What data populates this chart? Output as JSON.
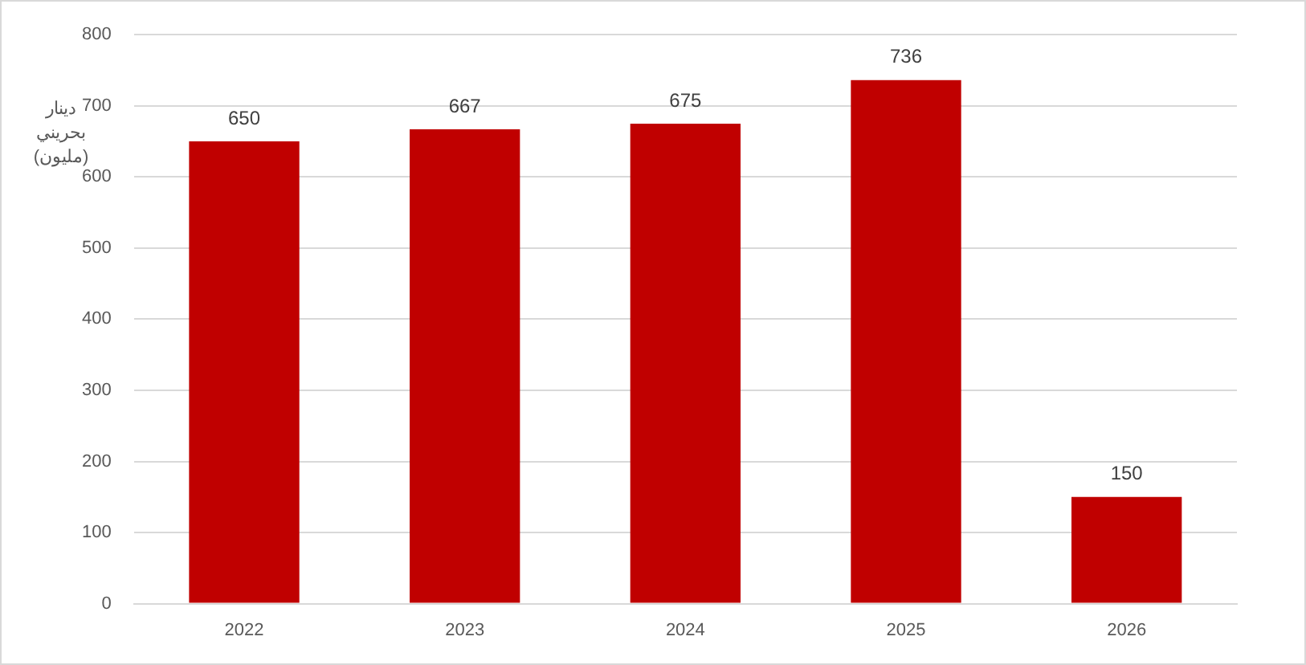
{
  "chart_data": {
    "type": "bar",
    "ylabel": "دينار بحريني (مليون)",
    "categories": [
      "2022",
      "2023",
      "2024",
      "2025",
      "2026"
    ],
    "values": [
      650,
      667,
      675,
      736,
      150
    ],
    "color": "#c00000",
    "ylim": [
      0,
      800
    ],
    "yticks": [
      0,
      100,
      200,
      300,
      400,
      500,
      600,
      700,
      800
    ],
    "grid": "y",
    "data_labels": true
  }
}
